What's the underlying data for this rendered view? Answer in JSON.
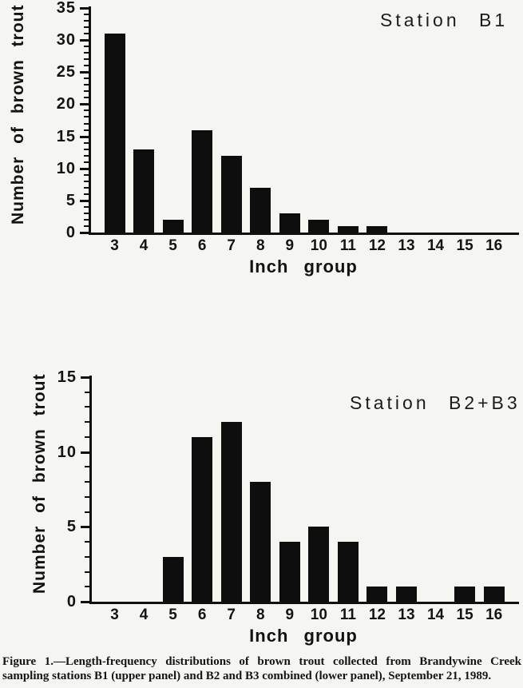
{
  "figure": {
    "caption": "Figure 1.—Length-frequency distributions of brown trout collected from Brandywine Creek sampling stations B1 (upper panel) and B2 and B3 combined (lower panel), September 21, 1989."
  },
  "colors": {
    "bar": "#0e0e0e",
    "ink": "#141414",
    "background": "#f5f5f2"
  },
  "chart_data": [
    {
      "type": "bar",
      "title": "Station B1",
      "xlabel": "Inch group",
      "ylabel": "Number of brown trout",
      "categories": [
        "3",
        "4",
        "5",
        "6",
        "7",
        "8",
        "9",
        "10",
        "11",
        "12",
        "13",
        "14",
        "15",
        "16"
      ],
      "values": [
        31,
        13,
        2,
        16,
        12,
        7,
        3,
        2,
        1,
        1,
        0,
        0,
        0,
        0
      ],
      "ylim": [
        0,
        35
      ],
      "ytick_major": 5,
      "ytick_minor": 1,
      "grid": false,
      "legend": "none"
    },
    {
      "type": "bar",
      "title": "Station B2+B3",
      "xlabel": "Inch group",
      "ylabel": "Number of brown trout",
      "categories": [
        "3",
        "4",
        "5",
        "6",
        "7",
        "8",
        "9",
        "10",
        "11",
        "12",
        "13",
        "14",
        "15",
        "16"
      ],
      "values": [
        0,
        0,
        3,
        11,
        12,
        8,
        4,
        5,
        4,
        1,
        1,
        0,
        1,
        1
      ],
      "ylim": [
        0,
        15
      ],
      "ytick_major": 5,
      "ytick_minor": 1,
      "grid": false,
      "legend": "none"
    }
  ]
}
